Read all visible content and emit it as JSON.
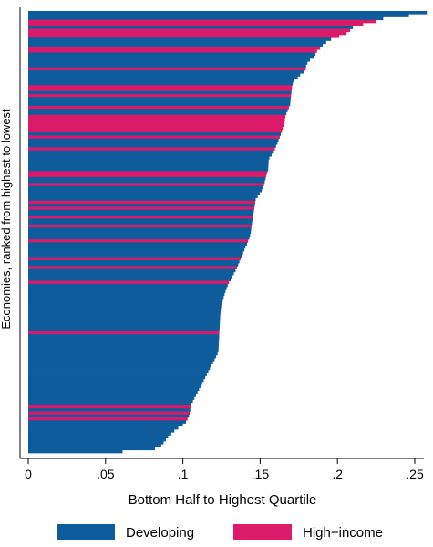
{
  "chart_data": {
    "type": "bar",
    "orientation": "horizontal",
    "title": "",
    "xlabel": "Bottom Half to Highest Quartile",
    "ylabel": "Economies, ranked from highest to lowest",
    "xlim": [
      0,
      0.26
    ],
    "xticks": [
      0,
      0.05,
      0.1,
      0.15,
      0.2,
      0.25
    ],
    "xtick_labels": [
      "0",
      ".05",
      ".1",
      ".15",
      ".2",
      ".25"
    ],
    "grid": false,
    "legend_position": "bottom",
    "series": [
      {
        "name": "Developing",
        "color": "#0e5c9c"
      },
      {
        "name": "High−income",
        "color": "#dc1a6a"
      }
    ],
    "bars": [
      {
        "v": 0.2578,
        "g": "Developing"
      },
      {
        "v": 0.2462,
        "g": "Developing"
      },
      {
        "v": 0.2296,
        "g": "Developing"
      },
      {
        "v": 0.2248,
        "g": "High−income"
      },
      {
        "v": 0.2166,
        "g": "High−income"
      },
      {
        "v": 0.21,
        "g": "Developing"
      },
      {
        "v": 0.2082,
        "g": "High−income"
      },
      {
        "v": 0.2059,
        "g": "High−income"
      },
      {
        "v": 0.2011,
        "g": "High−income"
      },
      {
        "v": 0.1959,
        "g": "Developing"
      },
      {
        "v": 0.1927,
        "g": "Developing"
      },
      {
        "v": 0.1905,
        "g": "Developing"
      },
      {
        "v": 0.1888,
        "g": "High−income"
      },
      {
        "v": 0.1868,
        "g": "High−income"
      },
      {
        "v": 0.1858,
        "g": "Developing"
      },
      {
        "v": 0.1846,
        "g": "Developing"
      },
      {
        "v": 0.1822,
        "g": "Developing"
      },
      {
        "v": 0.1806,
        "g": "Developing"
      },
      {
        "v": 0.1797,
        "g": "Developing"
      },
      {
        "v": 0.1795,
        "g": "High−income"
      },
      {
        "v": 0.1784,
        "g": "Developing"
      },
      {
        "v": 0.1759,
        "g": "Developing"
      },
      {
        "v": 0.1743,
        "g": "Developing"
      },
      {
        "v": 0.1718,
        "g": "Developing"
      },
      {
        "v": 0.1711,
        "g": "Developing"
      },
      {
        "v": 0.1706,
        "g": "High−income"
      },
      {
        "v": 0.1704,
        "g": "High−income"
      },
      {
        "v": 0.1702,
        "g": "Developing"
      },
      {
        "v": 0.17,
        "g": "High−income"
      },
      {
        "v": 0.1698,
        "g": "Developing"
      },
      {
        "v": 0.1696,
        "g": "Developing"
      },
      {
        "v": 0.1694,
        "g": "Developing"
      },
      {
        "v": 0.1686,
        "g": "High−income"
      },
      {
        "v": 0.1678,
        "g": "Developing"
      },
      {
        "v": 0.167,
        "g": "Developing"
      },
      {
        "v": 0.1664,
        "g": "High−income"
      },
      {
        "v": 0.166,
        "g": "High−income"
      },
      {
        "v": 0.1658,
        "g": "High−income"
      },
      {
        "v": 0.1652,
        "g": "High−income"
      },
      {
        "v": 0.1646,
        "g": "High−income"
      },
      {
        "v": 0.1641,
        "g": "High−income"
      },
      {
        "v": 0.1633,
        "g": "Developing"
      },
      {
        "v": 0.1627,
        "g": "High−income"
      },
      {
        "v": 0.1619,
        "g": "Developing"
      },
      {
        "v": 0.1612,
        "g": "Developing"
      },
      {
        "v": 0.1603,
        "g": "Developing"
      },
      {
        "v": 0.1595,
        "g": "High−income"
      },
      {
        "v": 0.1588,
        "g": "Developing"
      },
      {
        "v": 0.1574,
        "g": "Developing"
      },
      {
        "v": 0.156,
        "g": "Developing"
      },
      {
        "v": 0.1555,
        "g": "Developing"
      },
      {
        "v": 0.1554,
        "g": "Developing"
      },
      {
        "v": 0.1553,
        "g": "Developing"
      },
      {
        "v": 0.1552,
        "g": "Developing"
      },
      {
        "v": 0.1545,
        "g": "High−income"
      },
      {
        "v": 0.154,
        "g": "High−income"
      },
      {
        "v": 0.1535,
        "g": "Developing"
      },
      {
        "v": 0.153,
        "g": "Developing"
      },
      {
        "v": 0.1525,
        "g": "High−income"
      },
      {
        "v": 0.152,
        "g": "Developing"
      },
      {
        "v": 0.151,
        "g": "Developing"
      },
      {
        "v": 0.1497,
        "g": "Developing"
      },
      {
        "v": 0.1484,
        "g": "Developing"
      },
      {
        "v": 0.1471,
        "g": "Developing"
      },
      {
        "v": 0.1468,
        "g": "High−income"
      },
      {
        "v": 0.1465,
        "g": "Developing"
      },
      {
        "v": 0.1462,
        "g": "High−income"
      },
      {
        "v": 0.1459,
        "g": "Developing"
      },
      {
        "v": 0.1456,
        "g": "Developing"
      },
      {
        "v": 0.1453,
        "g": "High−income"
      },
      {
        "v": 0.145,
        "g": "Developing"
      },
      {
        "v": 0.1447,
        "g": "Developing"
      },
      {
        "v": 0.1445,
        "g": "High−income"
      },
      {
        "v": 0.1442,
        "g": "Developing"
      },
      {
        "v": 0.144,
        "g": "Developing"
      },
      {
        "v": 0.1435,
        "g": "Developing"
      },
      {
        "v": 0.143,
        "g": "Developing"
      },
      {
        "v": 0.1422,
        "g": "High−income"
      },
      {
        "v": 0.1415,
        "g": "Developing"
      },
      {
        "v": 0.1405,
        "g": "Developing"
      },
      {
        "v": 0.1398,
        "g": "Developing"
      },
      {
        "v": 0.139,
        "g": "Developing"
      },
      {
        "v": 0.1382,
        "g": "Developing"
      },
      {
        "v": 0.1374,
        "g": "High−income"
      },
      {
        "v": 0.1366,
        "g": "Developing"
      },
      {
        "v": 0.1358,
        "g": "Developing"
      },
      {
        "v": 0.135,
        "g": "High−income"
      },
      {
        "v": 0.1341,
        "g": "Developing"
      },
      {
        "v": 0.133,
        "g": "Developing"
      },
      {
        "v": 0.1319,
        "g": "Developing"
      },
      {
        "v": 0.1309,
        "g": "Developing"
      },
      {
        "v": 0.1299,
        "g": "High−income"
      },
      {
        "v": 0.129,
        "g": "Developing"
      },
      {
        "v": 0.1283,
        "g": "Developing"
      },
      {
        "v": 0.1276,
        "g": "Developing"
      },
      {
        "v": 0.127,
        "g": "Developing"
      },
      {
        "v": 0.1264,
        "g": "Developing"
      },
      {
        "v": 0.1258,
        "g": "Developing"
      },
      {
        "v": 0.1252,
        "g": "Developing"
      },
      {
        "v": 0.1248,
        "g": "Developing"
      },
      {
        "v": 0.1246,
        "g": "Developing"
      },
      {
        "v": 0.1244,
        "g": "Developing"
      },
      {
        "v": 0.1242,
        "g": "Developing"
      },
      {
        "v": 0.1241,
        "g": "Developing"
      },
      {
        "v": 0.124,
        "g": "Developing"
      },
      {
        "v": 0.1239,
        "g": "Developing"
      },
      {
        "v": 0.1238,
        "g": "Developing"
      },
      {
        "v": 0.1237,
        "g": "Developing"
      },
      {
        "v": 0.1236,
        "g": "High−income"
      },
      {
        "v": 0.1235,
        "g": "Developing"
      },
      {
        "v": 0.1234,
        "g": "Developing"
      },
      {
        "v": 0.1233,
        "g": "Developing"
      },
      {
        "v": 0.1232,
        "g": "Developing"
      },
      {
        "v": 0.1231,
        "g": "Developing"
      },
      {
        "v": 0.123,
        "g": "Developing"
      },
      {
        "v": 0.1225,
        "g": "Developing"
      },
      {
        "v": 0.1215,
        "g": "Developing"
      },
      {
        "v": 0.1205,
        "g": "Developing"
      },
      {
        "v": 0.1195,
        "g": "Developing"
      },
      {
        "v": 0.1185,
        "g": "Developing"
      },
      {
        "v": 0.1175,
        "g": "Developing"
      },
      {
        "v": 0.1165,
        "g": "Developing"
      },
      {
        "v": 0.1155,
        "g": "Developing"
      },
      {
        "v": 0.1145,
        "g": "Developing"
      },
      {
        "v": 0.1135,
        "g": "Developing"
      },
      {
        "v": 0.1125,
        "g": "Developing"
      },
      {
        "v": 0.1115,
        "g": "Developing"
      },
      {
        "v": 0.1105,
        "g": "Developing"
      },
      {
        "v": 0.1095,
        "g": "Developing"
      },
      {
        "v": 0.1085,
        "g": "Developing"
      },
      {
        "v": 0.1075,
        "g": "Developing"
      },
      {
        "v": 0.1065,
        "g": "Developing"
      },
      {
        "v": 0.1055,
        "g": "Developing"
      },
      {
        "v": 0.1052,
        "g": "High−income"
      },
      {
        "v": 0.1048,
        "g": "Developing"
      },
      {
        "v": 0.1044,
        "g": "High−income"
      },
      {
        "v": 0.104,
        "g": "Developing"
      },
      {
        "v": 0.103,
        "g": "High−income"
      },
      {
        "v": 0.102,
        "g": "Developing"
      },
      {
        "v": 0.1,
        "g": "Developing"
      },
      {
        "v": 0.097,
        "g": "Developing"
      },
      {
        "v": 0.0945,
        "g": "Developing"
      },
      {
        "v": 0.0925,
        "g": "Developing"
      },
      {
        "v": 0.0905,
        "g": "Developing"
      },
      {
        "v": 0.089,
        "g": "Developing"
      },
      {
        "v": 0.0875,
        "g": "Developing"
      },
      {
        "v": 0.086,
        "g": "Developing"
      },
      {
        "v": 0.082,
        "g": "Developing"
      },
      {
        "v": 0.061,
        "g": "Developing"
      }
    ]
  }
}
